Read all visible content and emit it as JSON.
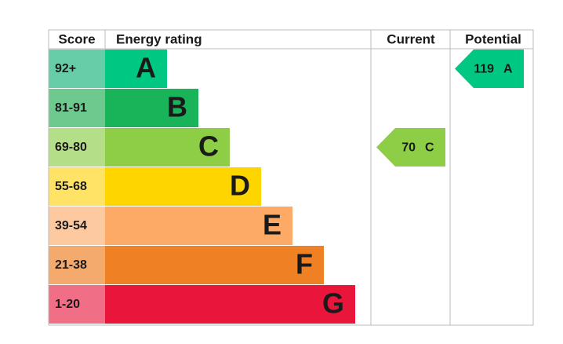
{
  "header": {
    "score": "Score",
    "rating": "Energy rating",
    "current": "Current",
    "potential": "Potential"
  },
  "bands": [
    {
      "score": "92+",
      "letter": "A",
      "color": "#00c781",
      "tint": "#66cda8"
    },
    {
      "score": "81-91",
      "letter": "B",
      "color": "#19b459",
      "tint": "#6ec98e"
    },
    {
      "score": "69-80",
      "letter": "C",
      "color": "#8dce46",
      "tint": "#b5de88"
    },
    {
      "score": "55-68",
      "letter": "D",
      "color": "#ffd500",
      "tint": "#ffe366"
    },
    {
      "score": "39-54",
      "letter": "E",
      "color": "#fcaa65",
      "tint": "#fdc9a0"
    },
    {
      "score": "21-38",
      "letter": "F",
      "color": "#ef8023",
      "tint": "#f4aa6c"
    },
    {
      "score": "1-20",
      "letter": "G",
      "color": "#e9153b",
      "tint": "#f06f87"
    }
  ],
  "current": {
    "value": 70,
    "band": "C"
  },
  "potential": {
    "value": 119,
    "band": "A"
  }
}
